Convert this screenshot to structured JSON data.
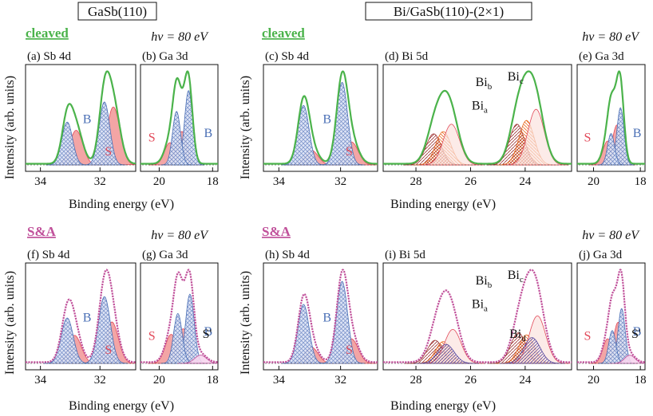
{
  "header": {
    "left_title": "GaSb(110)",
    "right_title": "Bi/GaSb(110)-(2×1)"
  },
  "colors": {
    "green": "#4bb34b",
    "magenta": "#c0509a",
    "surface_fill": "#f2a0a0",
    "surface_line": "#e24a5a",
    "bulk_line": "#4a6fb5",
    "bi_dark": "#9a2e2e",
    "bi_orange": "#e86a20",
    "bi_purple": "#5a4aa0"
  },
  "rows": [
    {
      "sample_label": "cleaved",
      "hv_label": "hv = 80 eV",
      "ylabel": "Intensity (arb. units)",
      "xlabel": "Binding energy (eV)",
      "group_labels": {
        "left_tag": "cleaved",
        "left_hv": "hv = 80 eV",
        "right_tag": "cleaved",
        "right_hv": "hv = 80 eV"
      }
    },
    {
      "sample_label": "S&A",
      "hv_label": "hv = 80 eV",
      "ylabel": "Intensity (arb. units)",
      "xlabel": "Binding energy (eV)",
      "group_labels": {
        "left_tag": "S&A",
        "left_hv": "hv = 80 eV",
        "right_tag": "S&A",
        "right_hv": "hv = 80 eV"
      }
    }
  ],
  "chart_data": [
    {
      "id": "a",
      "title": "(a) Sb 4d",
      "type": "line",
      "xlabel": "Binding energy (eV)",
      "ylabel": "Intensity (arb. units)",
      "xlim": [
        34.5,
        30.8
      ],
      "xticks": [
        34,
        32
      ],
      "sample": "GaSb(110) cleaved",
      "data_color": "green",
      "peaks": [
        {
          "pos": 31.55,
          "amp": 0.92,
          "w": 0.22,
          "comp": "S"
        },
        {
          "pos": 32.8,
          "amp": 0.55,
          "w": 0.22,
          "comp": "S"
        },
        {
          "pos": 31.85,
          "amp": 1.0,
          "w": 0.18,
          "comp": "B"
        },
        {
          "pos": 33.1,
          "amp": 0.68,
          "w": 0.18,
          "comp": "B"
        }
      ],
      "annotations": [
        "B",
        "S"
      ]
    },
    {
      "id": "b",
      "title": "(b) Ga 3d",
      "type": "line",
      "xlabel": "Binding energy (eV)",
      "ylabel": "",
      "xlim": [
        20.7,
        17.8
      ],
      "xticks": [
        20,
        18
      ],
      "sample": "GaSb(110) cleaved",
      "data_color": "green",
      "peaks": [
        {
          "pos": 19.6,
          "amp": 0.3,
          "w": 0.2,
          "comp": "S"
        },
        {
          "pos": 19.15,
          "amp": 0.45,
          "w": 0.2,
          "comp": "S"
        },
        {
          "pos": 18.9,
          "amp": 1.0,
          "w": 0.15,
          "comp": "B"
        },
        {
          "pos": 19.35,
          "amp": 0.72,
          "w": 0.15,
          "comp": "B"
        }
      ],
      "annotations": [
        "S",
        "B"
      ]
    },
    {
      "id": "c",
      "title": "(c) Sb 4d",
      "type": "line",
      "xlabel": "Binding energy (eV)",
      "ylabel": "Intensity (arb. units)",
      "xlim": [
        34.5,
        30.8
      ],
      "xticks": [
        34,
        32
      ],
      "sample": "Bi/GaSb(110)-(2×1) cleaved",
      "data_color": "green",
      "peaks": [
        {
          "pos": 31.65,
          "amp": 0.28,
          "w": 0.22,
          "comp": "S"
        },
        {
          "pos": 32.95,
          "amp": 0.18,
          "w": 0.22,
          "comp": "S"
        },
        {
          "pos": 31.95,
          "amp": 1.0,
          "w": 0.18,
          "comp": "B"
        },
        {
          "pos": 33.2,
          "amp": 0.72,
          "w": 0.18,
          "comp": "B"
        }
      ],
      "annotations": [
        "B",
        "S"
      ]
    },
    {
      "id": "d",
      "title": "(d) Bi 5d",
      "type": "line",
      "xlabel": "Binding energy (eV)",
      "ylabel": "",
      "xlim": [
        29.2,
        22.3
      ],
      "xticks": [
        28,
        26,
        24
      ],
      "sample": "Bi/GaSb(110)-(2×1) cleaved",
      "data_color": "green",
      "peaks": [
        {
          "pos": 24.3,
          "amp": 0.55,
          "w": 0.28,
          "comp": "Bi_a"
        },
        {
          "pos": 27.35,
          "amp": 0.42,
          "w": 0.28,
          "comp": "Bi_a"
        },
        {
          "pos": 23.95,
          "amp": 0.6,
          "w": 0.28,
          "comp": "Bi_b"
        },
        {
          "pos": 27.0,
          "amp": 0.45,
          "w": 0.28,
          "comp": "Bi_b"
        },
        {
          "pos": 23.6,
          "amp": 0.75,
          "w": 0.3,
          "comp": "Bi_c"
        },
        {
          "pos": 26.7,
          "amp": 0.55,
          "w": 0.3,
          "comp": "Bi_c"
        }
      ],
      "annotations": [
        "Bib",
        "Bic",
        "Bia"
      ]
    },
    {
      "id": "e",
      "title": "(e) Ga 3d",
      "type": "line",
      "xlabel": "Binding energy (eV)",
      "ylabel": "",
      "xlim": [
        20.7,
        17.8
      ],
      "xticks": [
        20,
        18
      ],
      "sample": "Bi/GaSb(110)-(2×1) cleaved",
      "data_color": "green",
      "peaks": [
        {
          "pos": 19.4,
          "amp": 0.42,
          "w": 0.2,
          "comp": "S"
        },
        {
          "pos": 19.0,
          "amp": 0.7,
          "w": 0.2,
          "comp": "S"
        },
        {
          "pos": 18.85,
          "amp": 1.0,
          "w": 0.15,
          "comp": "B"
        },
        {
          "pos": 19.25,
          "amp": 0.55,
          "w": 0.15,
          "comp": "B"
        }
      ],
      "annotations": [
        "S",
        "B"
      ]
    },
    {
      "id": "f",
      "title": "(f) Sb 4d",
      "type": "line",
      "xlabel": "Binding energy (eV)",
      "ylabel": "Intensity (arb. units)",
      "xlim": [
        34.5,
        30.8
      ],
      "xticks": [
        34,
        32
      ],
      "sample": "GaSb(110) S&A",
      "data_color": "magenta",
      "peaks": [
        {
          "pos": 31.6,
          "amp": 0.62,
          "w": 0.22,
          "comp": "S"
        },
        {
          "pos": 32.85,
          "amp": 0.42,
          "w": 0.22,
          "comp": "S"
        },
        {
          "pos": 31.85,
          "amp": 1.0,
          "w": 0.2,
          "comp": "B"
        },
        {
          "pos": 33.1,
          "amp": 0.68,
          "w": 0.2,
          "comp": "B"
        }
      ],
      "annotations": [
        "B",
        "S"
      ]
    },
    {
      "id": "g",
      "title": "(g) Ga 3d",
      "type": "line",
      "xlabel": "Binding energy (eV)",
      "ylabel": "",
      "xlim": [
        20.7,
        17.8
      ],
      "xticks": [
        20,
        18
      ],
      "sample": "GaSb(110) S&A",
      "data_color": "magenta",
      "peaks": [
        {
          "pos": 19.55,
          "amp": 0.42,
          "w": 0.22,
          "comp": "S"
        },
        {
          "pos": 19.1,
          "amp": 0.5,
          "w": 0.22,
          "comp": "S"
        },
        {
          "pos": 18.85,
          "amp": 1.0,
          "w": 0.16,
          "comp": "B"
        },
        {
          "pos": 19.3,
          "amp": 0.72,
          "w": 0.16,
          "comp": "B"
        },
        {
          "pos": 18.45,
          "amp": 0.12,
          "w": 0.22,
          "comp": "S'"
        }
      ],
      "annotations": [
        "S",
        "B",
        "S'"
      ]
    },
    {
      "id": "h",
      "title": "(h) Sb 4d",
      "type": "line",
      "xlabel": "Binding energy (eV)",
      "ylabel": "Intensity (arb. units)",
      "xlim": [
        34.5,
        30.8
      ],
      "xticks": [
        34,
        32
      ],
      "sample": "Bi/GaSb(110)-(2×1) S&A",
      "data_color": "magenta",
      "peaks": [
        {
          "pos": 31.65,
          "amp": 0.3,
          "w": 0.22,
          "comp": "S"
        },
        {
          "pos": 32.95,
          "amp": 0.2,
          "w": 0.22,
          "comp": "S"
        },
        {
          "pos": 31.95,
          "amp": 1.0,
          "w": 0.18,
          "comp": "B"
        },
        {
          "pos": 33.2,
          "amp": 0.72,
          "w": 0.18,
          "comp": "B"
        }
      ],
      "annotations": [
        "B",
        "S"
      ]
    },
    {
      "id": "i",
      "title": "(i) Bi 5d",
      "type": "line",
      "xlabel": "Binding energy (eV)",
      "ylabel": "",
      "xlim": [
        29.2,
        22.3
      ],
      "xticks": [
        28,
        26,
        24
      ],
      "sample": "Bi/GaSb(110)-(2×1) S&A",
      "data_color": "magenta",
      "peaks": [
        {
          "pos": 24.25,
          "amp": 0.45,
          "w": 0.28,
          "comp": "Bi_a"
        },
        {
          "pos": 27.3,
          "amp": 0.34,
          "w": 0.28,
          "comp": "Bi_a"
        },
        {
          "pos": 23.95,
          "amp": 0.42,
          "w": 0.28,
          "comp": "Bi_b"
        },
        {
          "pos": 27.0,
          "amp": 0.32,
          "w": 0.28,
          "comp": "Bi_b"
        },
        {
          "pos": 23.55,
          "amp": 0.7,
          "w": 0.3,
          "comp": "Bi_c"
        },
        {
          "pos": 26.65,
          "amp": 0.5,
          "w": 0.3,
          "comp": "Bi_c"
        },
        {
          "pos": 23.75,
          "amp": 0.38,
          "w": 0.3,
          "comp": "Bi_d"
        },
        {
          "pos": 26.9,
          "amp": 0.28,
          "w": 0.3,
          "comp": "Bi_d"
        }
      ],
      "annotations": [
        "Bib",
        "Bic",
        "Bia",
        "Bid"
      ]
    },
    {
      "id": "j",
      "title": "(j) Ga 3d",
      "type": "line",
      "xlabel": "Binding energy (eV)",
      "ylabel": "",
      "xlim": [
        20.7,
        17.8
      ],
      "xticks": [
        20,
        18
      ],
      "sample": "Bi/GaSb(110)-(2×1) S&A",
      "data_color": "magenta",
      "peaks": [
        {
          "pos": 19.4,
          "amp": 0.45,
          "w": 0.2,
          "comp": "S"
        },
        {
          "pos": 18.95,
          "amp": 0.75,
          "w": 0.2,
          "comp": "S"
        },
        {
          "pos": 18.8,
          "amp": 1.0,
          "w": 0.15,
          "comp": "B"
        },
        {
          "pos": 19.2,
          "amp": 0.6,
          "w": 0.15,
          "comp": "B"
        },
        {
          "pos": 18.45,
          "amp": 0.15,
          "w": 0.22,
          "comp": "S'"
        }
      ],
      "annotations": [
        "S",
        "B",
        "S'"
      ]
    }
  ]
}
